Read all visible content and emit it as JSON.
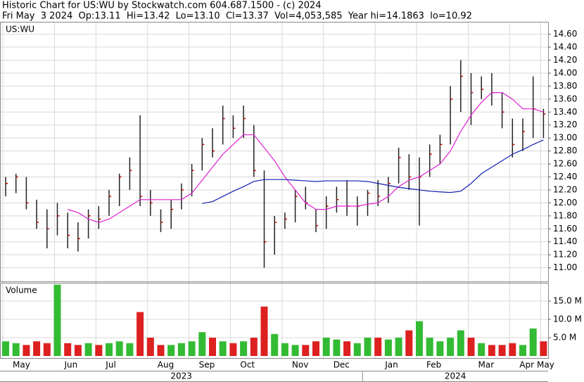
{
  "header": {
    "title": "Historic Chart for US:WU by Stockwatch.com 604.687.1500 - (c) 2024",
    "quote": "Fri May  3 2024  Op:13.11  Hi=13.42  Lo=13.10  Cl=13.37  Vol=4,053,585  Year hi=14.1863  lo=10.92"
  },
  "chart_data": [
    {
      "type": "ohlc",
      "label": "US:WU",
      "bar_color": "#222222",
      "close_color": "#c00000",
      "grid": true,
      "high": [
        12.4,
        12.45,
        12.4,
        12.05,
        11.9,
        12.0,
        11.85,
        11.7,
        11.9,
        11.95,
        12.2,
        12.45,
        12.7,
        13.35,
        12.2,
        11.9,
        12.05,
        12.3,
        12.6,
        13.0,
        13.15,
        13.5,
        13.35,
        13.5,
        13.2,
        12.5,
        11.8,
        11.85,
        12.2,
        12.25,
        11.9,
        12.1,
        12.25,
        12.35,
        12.1,
        12.2,
        12.35,
        12.4,
        12.85,
        12.75,
        12.7,
        12.9,
        13.05,
        13.8,
        14.2,
        14.0,
        13.95,
        14.0,
        13.7,
        13.3,
        13.3,
        13.95,
        13.45
      ],
      "low": [
        12.1,
        12.15,
        11.9,
        11.6,
        11.3,
        11.5,
        11.3,
        11.25,
        11.45,
        11.6,
        11.8,
        11.95,
        12.2,
        11.95,
        11.8,
        11.55,
        11.6,
        11.9,
        12.1,
        12.5,
        12.7,
        12.9,
        13.0,
        13.0,
        12.4,
        11.0,
        11.2,
        11.6,
        11.7,
        11.9,
        11.55,
        11.6,
        11.85,
        11.8,
        11.65,
        11.8,
        11.95,
        12.0,
        12.3,
        12.2,
        11.65,
        12.4,
        12.6,
        12.9,
        13.4,
        13.2,
        13.6,
        13.5,
        13.15,
        12.7,
        12.8,
        13.0,
        13.0
      ],
      "close": [
        12.3,
        12.4,
        12.0,
        11.7,
        11.6,
        11.8,
        11.5,
        11.45,
        11.8,
        11.75,
        12.1,
        12.4,
        12.5,
        12.1,
        12.0,
        11.7,
        11.9,
        12.2,
        12.5,
        12.9,
        12.8,
        13.3,
        13.15,
        13.3,
        12.5,
        11.4,
        11.7,
        11.75,
        12.1,
        12.0,
        11.65,
        11.95,
        12.05,
        11.95,
        11.95,
        12.15,
        12.1,
        12.3,
        12.7,
        12.4,
        12.4,
        12.75,
        12.9,
        13.6,
        13.95,
        13.7,
        13.75,
        13.7,
        13.4,
        12.9,
        13.1,
        13.45,
        13.37
      ],
      "moving_averages": [
        {
          "color": "#e020d0",
          "values": [
            null,
            null,
            null,
            null,
            null,
            null,
            11.9,
            11.85,
            11.75,
            11.7,
            11.75,
            11.85,
            11.95,
            12.05,
            12.05,
            12.05,
            12.05,
            12.05,
            12.15,
            12.35,
            12.55,
            12.75,
            12.9,
            13.05,
            13.05,
            12.85,
            12.65,
            12.4,
            12.2,
            12.0,
            11.9,
            11.9,
            11.95,
            11.95,
            11.95,
            11.98,
            12.0,
            12.1,
            12.25,
            12.35,
            12.4,
            12.5,
            12.6,
            12.8,
            13.1,
            13.35,
            13.55,
            13.7,
            13.7,
            13.6,
            13.45,
            13.45,
            13.4
          ]
        },
        {
          "color": "#1020b0",
          "values": [
            null,
            null,
            null,
            null,
            null,
            null,
            null,
            null,
            null,
            null,
            null,
            null,
            null,
            null,
            null,
            null,
            null,
            null,
            null,
            11.99,
            12.02,
            12.1,
            12.18,
            12.25,
            12.33,
            12.36,
            12.36,
            12.36,
            12.35,
            12.34,
            12.33,
            12.34,
            12.34,
            12.34,
            12.34,
            12.33,
            12.3,
            12.27,
            12.24,
            12.22,
            12.2,
            12.18,
            12.17,
            12.16,
            12.18,
            12.3,
            12.45,
            12.55,
            12.65,
            12.75,
            12.82,
            12.9,
            12.97
          ]
        }
      ],
      "ylim": [
        10.79,
        14.78
      ],
      "yticks": [
        {
          "value": 11.0,
          "label": "11.00"
        },
        {
          "value": 11.2,
          "label": "11.20"
        },
        {
          "value": 11.4,
          "label": "11.40"
        },
        {
          "value": 11.6,
          "label": "11.60"
        },
        {
          "value": 11.8,
          "label": "11.80"
        },
        {
          "value": 12.0,
          "label": "12.00"
        },
        {
          "value": 12.2,
          "label": "12.20"
        },
        {
          "value": 12.4,
          "label": "12.40"
        },
        {
          "value": 12.6,
          "label": "12.60"
        },
        {
          "value": 12.8,
          "label": "12.80"
        },
        {
          "value": 13.0,
          "label": "13.00"
        },
        {
          "value": 13.2,
          "label": "13.20"
        },
        {
          "value": 13.4,
          "label": "13.40"
        },
        {
          "value": 13.6,
          "label": "13.60"
        },
        {
          "value": 13.8,
          "label": "13.80"
        },
        {
          "value": 14.0,
          "label": "14.00"
        },
        {
          "value": 14.2,
          "label": "14.20"
        },
        {
          "value": 14.4,
          "label": "14.40"
        },
        {
          "value": 14.6,
          "label": "14.60"
        }
      ]
    },
    {
      "type": "bar",
      "label": "Volume",
      "up_color": "#33bb33",
      "down_color": "#dd2020",
      "grid": true,
      "categories": [
        "May",
        null,
        null,
        null,
        null,
        "Jun",
        null,
        null,
        null,
        "Jul",
        null,
        null,
        null,
        null,
        "Aug",
        null,
        null,
        null,
        "Sep",
        null,
        null,
        null,
        "Oct",
        null,
        null,
        null,
        null,
        "Nov",
        null,
        null,
        null,
        "Dec",
        null,
        null,
        null,
        null,
        "Jan",
        null,
        null,
        null,
        "Feb",
        null,
        null,
        null,
        null,
        "Mar",
        null,
        null,
        null,
        "Apr",
        null,
        null,
        "May"
      ],
      "values": [
        4,
        3.5,
        3,
        4,
        3.5,
        19.5,
        3.5,
        3,
        3.5,
        3,
        3.5,
        4,
        3.5,
        12,
        5,
        3,
        3,
        3.5,
        4,
        6.5,
        5,
        4,
        3.5,
        4,
        5,
        13.5,
        6,
        3.5,
        3,
        3,
        4,
        5,
        4.5,
        4,
        3.5,
        5,
        5,
        4.5,
        5,
        7,
        9.5,
        5,
        4,
        5,
        7,
        5,
        3.5,
        3,
        3,
        3.5,
        3,
        7.5,
        4
      ],
      "ylim": [
        0,
        19.8
      ],
      "yticks": [
        {
          "value": 5,
          "label": "5.0 M"
        },
        {
          "value": 10,
          "label": "10.0 M"
        },
        {
          "value": 15,
          "label": "15.0 M"
        }
      ],
      "years": [
        "2023",
        "2024"
      ]
    }
  ]
}
